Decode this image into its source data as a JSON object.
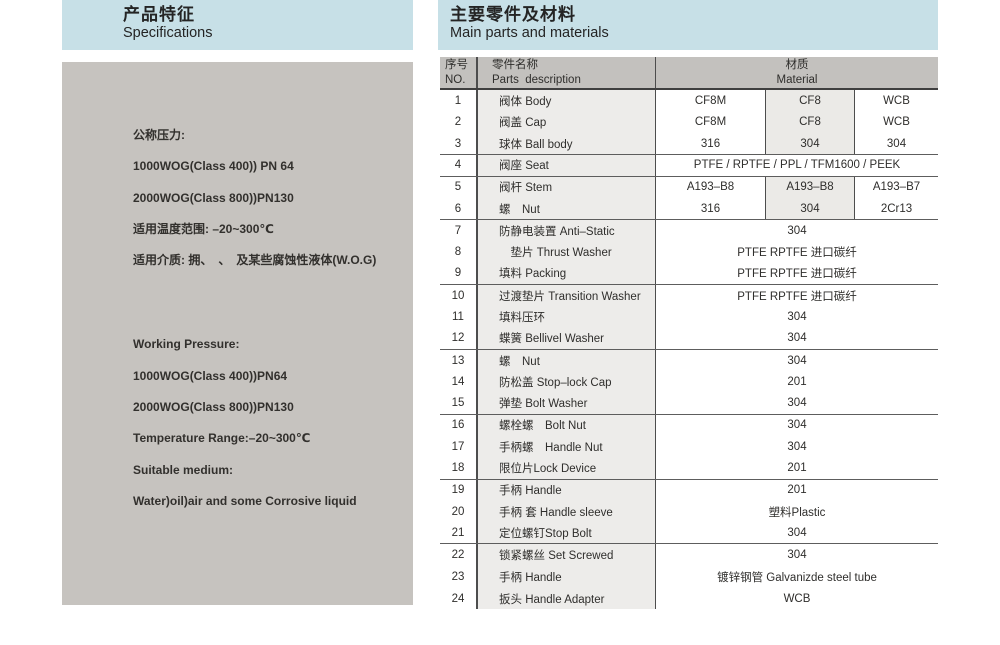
{
  "colors": {
    "accent_blue": "#c7e0e7",
    "panel_gray": "#c6c3bf",
    "table_header_gray": "#c3c1be",
    "shaded_cell_gray": "#edecea"
  },
  "left_panel": {
    "title_zh": "产品特征",
    "title_en": "Specifications",
    "groups": [
      {
        "lines": [
          "公称压力:",
          "1000WOG(Class 400)) PN 64",
          "2000WOG(Class 800))PN130",
          "适用温度范围: –20~300℃",
          "适用介质: 拥、　、　及某些腐蚀性液体(W.O.G)"
        ]
      },
      {
        "lines": [
          "Working Pressure:",
          "1000WOG(Class 400))PN64",
          "2000WOG(Class 800))PN130",
          "Temperature Range:–20~300℃",
          "Suitable medium:",
          "Water)oil)air and some Corrosive liquid"
        ]
      }
    ]
  },
  "right_panel": {
    "title_zh": "主要零件及材料",
    "title_en": "Main parts and materials",
    "table": {
      "header": {
        "no_zh": "序号",
        "no_en": "NO.",
        "parts_zh": "零件名称",
        "parts_en": "Parts  description",
        "mat_zh": "材质",
        "mat_en": "Material"
      },
      "rows": [
        {
          "no": "1",
          "part": "阀体 Body",
          "materials": [
            "CF8M",
            "CF8",
            "WCB"
          ]
        },
        {
          "no": "2",
          "part": "阀盖 Cap",
          "materials": [
            "CF8M",
            "CF8",
            "WCB"
          ]
        },
        {
          "no": "3",
          "part": "球体 Ball body",
          "materials": [
            "316",
            "304",
            "304"
          ],
          "group_end": true
        },
        {
          "no": "4",
          "part": "阀座 Seat",
          "materials": [
            "PTFE / RPTFE / PPL / TFM1600 / PEEK"
          ],
          "group_end": true
        },
        {
          "no": "5",
          "part": "阀杆 Stem",
          "materials": [
            "A193–B8",
            "A193–B8",
            "A193–B7"
          ]
        },
        {
          "no": "6",
          "part": "螺　Nut",
          "materials": [
            "316",
            "304",
            "2Cr13"
          ],
          "group_end": true
        },
        {
          "no": "7",
          "part": "防静电装置 Anti–Static",
          "materials": [
            "304"
          ]
        },
        {
          "no": "8",
          "part": "　垫片 Thrust Washer",
          "materials": [
            "PTFE RPTFE 进口碳纤"
          ]
        },
        {
          "no": "9",
          "part": "填料 Packing",
          "materials": [
            "PTFE RPTFE 进口碳纤"
          ],
          "group_end": true
        },
        {
          "no": "10",
          "part": "过渡垫片 Transition Washer",
          "materials": [
            "PTFE RPTFE 进口碳纤"
          ]
        },
        {
          "no": "11",
          "part": "填料压环",
          "materials": [
            "304"
          ]
        },
        {
          "no": "12",
          "part": "蝶簧 Bellivel Washer",
          "materials": [
            "304"
          ],
          "group_end": true
        },
        {
          "no": "13",
          "part": "螺　Nut",
          "materials": [
            "304"
          ]
        },
        {
          "no": "14",
          "part": "防松盖 Stop–lock Cap",
          "materials": [
            "201"
          ]
        },
        {
          "no": "15",
          "part": "弹垫 Bolt Washer",
          "materials": [
            "304"
          ],
          "group_end": true
        },
        {
          "no": "16",
          "part": "螺栓螺　Bolt Nut",
          "materials": [
            "304"
          ]
        },
        {
          "no": "17",
          "part": "手柄螺　Handle Nut",
          "materials": [
            "304"
          ]
        },
        {
          "no": "18",
          "part": "限位片Lock Device",
          "materials": [
            "201"
          ],
          "group_end": true
        },
        {
          "no": "19",
          "part": "手柄 Handle",
          "materials": [
            "201"
          ]
        },
        {
          "no": "20",
          "part": "手柄 套 Handle sleeve",
          "materials": [
            "塑料Plastic"
          ]
        },
        {
          "no": "21",
          "part": "定位螺钉Stop Bolt",
          "materials": [
            "304"
          ],
          "group_end": true
        },
        {
          "no": "22",
          "part": "锁紧螺丝 Set Screwed",
          "materials": [
            "304"
          ]
        },
        {
          "no": "23",
          "part": "手柄 Handle",
          "materials": [
            "镀锌钢管 Galvanizde steel tube"
          ]
        },
        {
          "no": "24",
          "part": "扳头 Handle Adapter",
          "materials": [
            "WCB"
          ]
        }
      ]
    }
  }
}
